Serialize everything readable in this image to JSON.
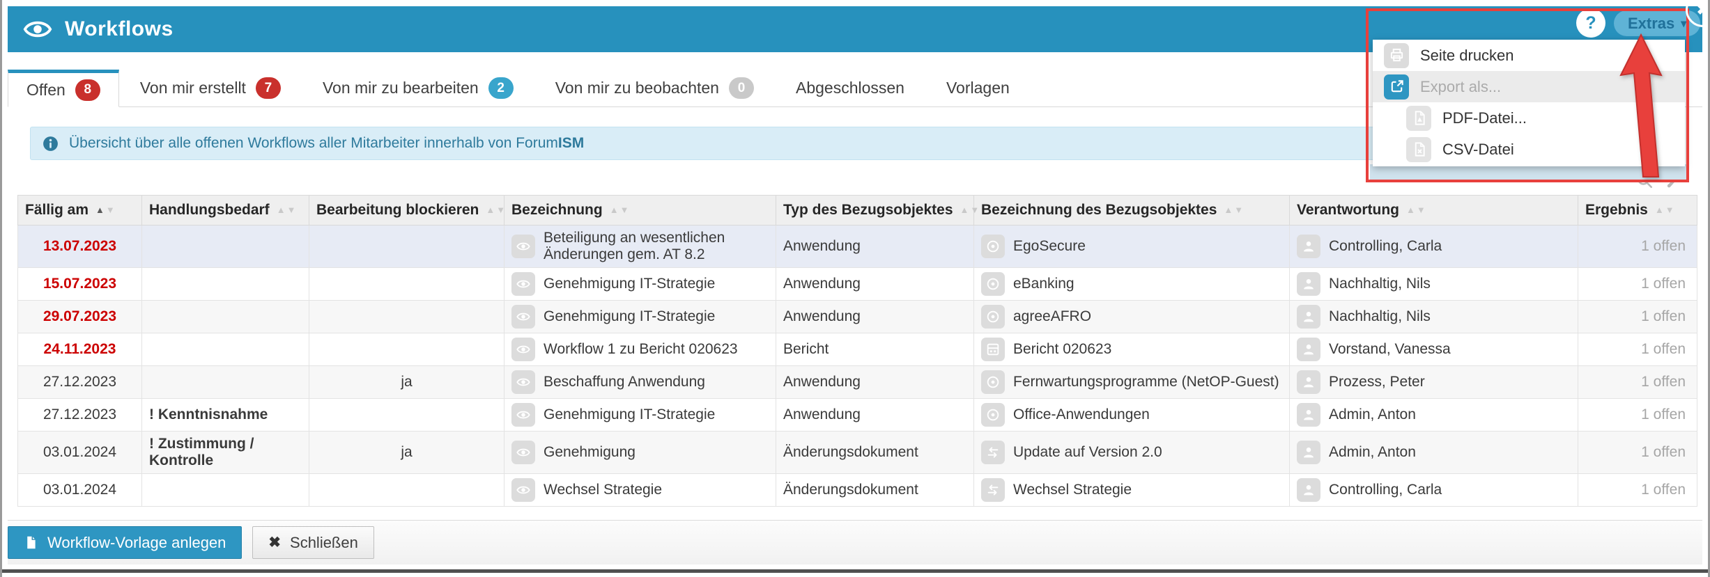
{
  "colors": {
    "header_blue": "#2791BD",
    "accent_blue": "#2E96C2",
    "badge_red": "#C9302C",
    "badge_blue": "#39A5CC",
    "badge_gray": "#C9C9C9",
    "annotation_red": "#E8403C",
    "banner_bg": "#D9EDF7",
    "banner_text": "#2E7A9C",
    "overdue_red": "#CC0000",
    "highlight_row": "#E7EBF5"
  },
  "icons": {
    "caret": "▾",
    "x_mark": "✖",
    "sort_asc": "▲",
    "sort_desc": "▼"
  },
  "header": {
    "title": "Workflows",
    "help_label": "?",
    "extras_label": "Extras",
    "close_label": "✖"
  },
  "tabs": [
    {
      "label": "Offen",
      "count": 8,
      "badge": "red",
      "active": true
    },
    {
      "label": "Von mir erstellt",
      "count": 7,
      "badge": "red",
      "active": false
    },
    {
      "label": "Von mir zu bearbeiten",
      "count": 2,
      "badge": "blue",
      "active": false
    },
    {
      "label": "Von mir zu beobachten",
      "count": 0,
      "badge": "gray",
      "active": false
    },
    {
      "label": "Abgeschlossen",
      "count": null,
      "badge": null,
      "active": false
    },
    {
      "label": "Vorlagen",
      "count": null,
      "badge": null,
      "active": false
    }
  ],
  "banner": {
    "text_prefix": "Übersicht über alle offenen Workflows aller Mitarbeiter innerhalb von Forum",
    "text_bold": "ISM"
  },
  "extras_menu": {
    "items": [
      {
        "label": "Seite drucken",
        "icon": "printer-icon",
        "disabled": false,
        "indent": false
      },
      {
        "label": "Export als...",
        "icon": "export-icon",
        "disabled": true,
        "indent": false
      },
      {
        "label": "PDF-Datei...",
        "icon": "pdf-file-icon",
        "disabled": false,
        "indent": true
      },
      {
        "label": "CSV-Datei",
        "icon": "csv-file-icon",
        "disabled": false,
        "indent": true
      }
    ]
  },
  "table": {
    "columns": [
      {
        "key": "faellig_am",
        "label": "Fällig am",
        "sort": "asc"
      },
      {
        "key": "handlungsbedarf",
        "label": "Handlungsbedarf",
        "sort": "none"
      },
      {
        "key": "bearbeitung_blockieren",
        "label": "Bearbeitung blockieren",
        "sort": "none"
      },
      {
        "key": "bezeichnung",
        "label": "Bezeichnung",
        "sort": "none"
      },
      {
        "key": "typ_des_bezugsobjektes",
        "label": "Typ des Bezugsobjektes",
        "sort": "none"
      },
      {
        "key": "bezeichnung_des_bezugsobjektes",
        "label": "Bezeichnung des Bezugsobjektes",
        "sort": "none"
      },
      {
        "key": "verantwortung",
        "label": "Verantwortung",
        "sort": "none"
      },
      {
        "key": "ergebnis",
        "label": "Ergebnis",
        "sort": "none"
      }
    ],
    "rows": [
      {
        "faellig": "13.07.2023",
        "overdue": true,
        "handlungsbedarf": "",
        "blockiert": "",
        "bezeichnung": "Beteiligung an wesentlichen Änderungen gem. AT 8.2",
        "typ": "Anwendung",
        "bezugsobjekt": "EgoSecure",
        "bezugsobjekt_icon": "application-icon",
        "verantwortung": "Controlling, Carla",
        "ergebnis": "1 offen",
        "highlighted": true
      },
      {
        "faellig": "15.07.2023",
        "overdue": true,
        "handlungsbedarf": "",
        "blockiert": "",
        "bezeichnung": "Genehmigung IT-Strategie",
        "typ": "Anwendung",
        "bezugsobjekt": "eBanking",
        "bezugsobjekt_icon": "application-icon",
        "verantwortung": "Nachhaltig, Nils",
        "ergebnis": "1 offen",
        "highlighted": false
      },
      {
        "faellig": "29.07.2023",
        "overdue": true,
        "handlungsbedarf": "",
        "blockiert": "",
        "bezeichnung": "Genehmigung IT-Strategie",
        "typ": "Anwendung",
        "bezugsobjekt": "agreeAFRO",
        "bezugsobjekt_icon": "application-icon",
        "verantwortung": "Nachhaltig, Nils",
        "ergebnis": "1 offen",
        "highlighted": false
      },
      {
        "faellig": "24.11.2023",
        "overdue": true,
        "handlungsbedarf": "",
        "blockiert": "",
        "bezeichnung": "Workflow 1 zu Bericht 020623",
        "typ": "Bericht",
        "bezugsobjekt": "Bericht 020623",
        "bezugsobjekt_icon": "report-icon",
        "verantwortung": "Vorstand, Vanessa",
        "ergebnis": "1 offen",
        "highlighted": false
      },
      {
        "faellig": "27.12.2023",
        "overdue": false,
        "handlungsbedarf": "",
        "blockiert": "ja",
        "bezeichnung": "Beschaffung Anwendung",
        "typ": "Anwendung",
        "bezugsobjekt": "Fernwartungsprogramme (NetOP-Guest)",
        "bezugsobjekt_icon": "application-icon",
        "verantwortung": "Prozess, Peter",
        "ergebnis": "1 offen",
        "highlighted": false
      },
      {
        "faellig": "27.12.2023",
        "overdue": false,
        "handlungsbedarf": "! Kenntnisnahme",
        "blockiert": "",
        "bezeichnung": "Genehmigung IT-Strategie",
        "typ": "Anwendung",
        "bezugsobjekt": "Office-Anwendungen",
        "bezugsobjekt_icon": "application-icon",
        "verantwortung": "Admin, Anton",
        "ergebnis": "1 offen",
        "highlighted": false
      },
      {
        "faellig": "03.01.2024",
        "overdue": false,
        "handlungsbedarf": "! Zustimmung / Kontrolle",
        "blockiert": "ja",
        "bezeichnung": "Genehmigung",
        "typ": "Änderungsdokument",
        "bezugsobjekt": "Update auf Version 2.0",
        "bezugsobjekt_icon": "change-icon",
        "verantwortung": "Admin, Anton",
        "ergebnis": "1 offen",
        "highlighted": false
      },
      {
        "faellig": "03.01.2024",
        "overdue": false,
        "handlungsbedarf": "",
        "blockiert": "",
        "bezeichnung": "Wechsel Strategie",
        "typ": "Änderungsdokument",
        "bezugsobjekt": "Wechsel Strategie",
        "bezugsobjekt_icon": "change-icon",
        "verantwortung": "Controlling, Carla",
        "ergebnis": "1 offen",
        "highlighted": false
      }
    ]
  },
  "footer": {
    "buttons": [
      {
        "label": "Workflow-Vorlage anlegen",
        "icon": "document-icon",
        "style": "primary"
      },
      {
        "label": "Schließen",
        "icon": "close-icon",
        "style": "default"
      }
    ]
  }
}
